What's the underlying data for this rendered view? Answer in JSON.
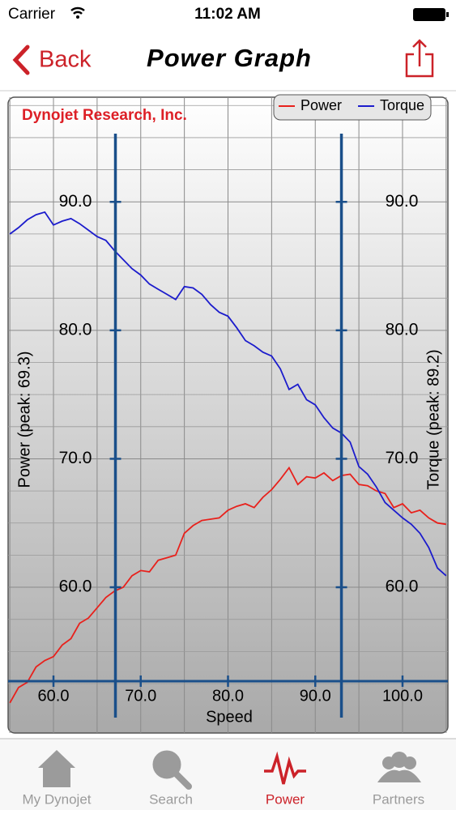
{
  "status_bar": {
    "carrier": "Carrier",
    "time": "11:02 AM"
  },
  "nav": {
    "back": "Back",
    "title": "Power Graph"
  },
  "chart_data": {
    "type": "line",
    "subtitle": "Dynojet Research, Inc.",
    "x_label": "Speed",
    "y_label": "Power (peak: 69.3)",
    "y2_label": "Torque (peak: 89.2)",
    "x": [
      55,
      56,
      57,
      58,
      59,
      60,
      61,
      62,
      63,
      64,
      65,
      66,
      67,
      68,
      69,
      70,
      71,
      72,
      73,
      74,
      75,
      76,
      77,
      78,
      79,
      80,
      81,
      82,
      83,
      84,
      85,
      86,
      87,
      88,
      89,
      90,
      91,
      92,
      93,
      94,
      95,
      96,
      97,
      98,
      99,
      100,
      101,
      102,
      103,
      104,
      105
    ],
    "series": [
      {
        "name": "Power",
        "color": "#e8211c",
        "values": [
          51.0,
          52.2,
          52.6,
          53.8,
          54.3,
          54.6,
          55.5,
          56.0,
          57.2,
          57.6,
          58.4,
          59.2,
          59.7,
          60.0,
          60.9,
          61.3,
          61.2,
          62.1,
          62.3,
          62.5,
          64.2,
          64.8,
          65.2,
          65.3,
          65.4,
          66.0,
          66.3,
          66.5,
          66.2,
          67.0,
          67.6,
          68.4,
          69.3,
          68.0,
          68.6,
          68.5,
          68.9,
          68.3,
          68.7,
          68.8,
          68.0,
          67.9,
          67.5,
          67.3,
          66.2,
          66.5,
          65.8,
          66.0,
          65.4,
          65.0,
          64.9
        ]
      },
      {
        "name": "Torque",
        "color": "#1c1ccc",
        "axis": "y2",
        "values": [
          87.5,
          88.0,
          88.6,
          89.0,
          89.2,
          88.2,
          88.5,
          88.7,
          88.3,
          87.8,
          87.3,
          87.0,
          86.2,
          85.5,
          84.8,
          84.3,
          83.6,
          83.2,
          82.8,
          82.4,
          83.4,
          83.3,
          82.8,
          82.0,
          81.4,
          81.1,
          80.2,
          79.2,
          78.8,
          78.3,
          78.0,
          77.0,
          75.4,
          75.8,
          74.6,
          74.2,
          73.2,
          72.4,
          72.0,
          71.3,
          69.4,
          68.8,
          67.8,
          66.6,
          66.0,
          65.4,
          64.9,
          64.2,
          63.1,
          61.5,
          60.9
        ]
      }
    ],
    "xlim": [
      54.8,
      105.2
    ],
    "xticks": [
      {
        "value": 60,
        "label": "60.0"
      },
      {
        "value": 70,
        "label": "70.0"
      },
      {
        "value": 80,
        "label": "80.0"
      },
      {
        "value": 90,
        "label": "90.0"
      },
      {
        "value": 100,
        "label": "100.0"
      }
    ],
    "ylim": [
      52.5,
      95.5
    ],
    "yticks": [
      {
        "value": 60,
        "label": "60.0"
      },
      {
        "value": 70,
        "label": "70.0"
      },
      {
        "value": 80,
        "label": "80.0"
      },
      {
        "value": 90,
        "label": "90.0"
      }
    ],
    "y2lim": [
      52.5,
      95.5
    ],
    "y2ticks": [
      {
        "value": 60,
        "label": "60.0"
      },
      {
        "value": 70,
        "label": "70.0"
      },
      {
        "value": 80,
        "label": "80.0"
      },
      {
        "value": 90,
        "label": "90.0"
      }
    ],
    "cursors": [
      67.1,
      93.0
    ],
    "grid": true,
    "legend": "top-right"
  },
  "tab_bar": {
    "tabs": [
      "My Dynojet",
      "Search",
      "Power",
      "Partners"
    ],
    "selected": 2
  }
}
